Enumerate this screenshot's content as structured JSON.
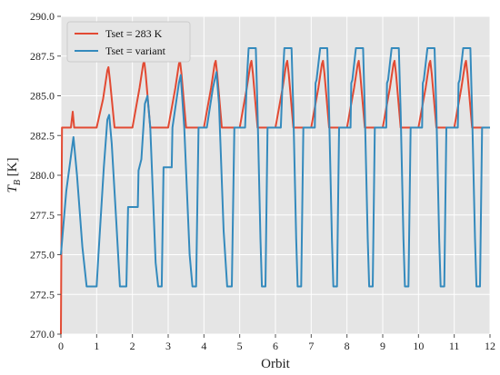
{
  "chart_data": {
    "type": "line",
    "xlabel": "Orbit",
    "ylabel_main": "T",
    "ylabel_sub": "B",
    "ylabel_unit": " [K]",
    "xlim": [
      0,
      12
    ],
    "ylim": [
      270,
      290
    ],
    "xticks": [
      "0",
      "1",
      "2",
      "3",
      "4",
      "5",
      "6",
      "7",
      "8",
      "9",
      "10",
      "11",
      "12"
    ],
    "yticks": [
      "270.0",
      "272.5",
      "275.0",
      "277.5",
      "280.0",
      "282.5",
      "285.0",
      "287.5",
      "290.0"
    ],
    "grid": true,
    "legend_position": "top-left",
    "series": [
      {
        "name": "Tset = 283 K",
        "color": "#e24a33",
        "points": [
          [
            0.0,
            270.0
          ],
          [
            0.03,
            283.0
          ],
          [
            0.28,
            283.0
          ],
          [
            0.33,
            284.0
          ],
          [
            0.37,
            283.0
          ],
          [
            1.0,
            283.0
          ],
          [
            1.18,
            284.8
          ],
          [
            1.3,
            286.6
          ],
          [
            1.33,
            286.8
          ],
          [
            1.37,
            286.0
          ],
          [
            1.5,
            283.0
          ],
          [
            2.0,
            283.0
          ],
          [
            2.2,
            285.5
          ],
          [
            2.3,
            287.0
          ],
          [
            2.33,
            287.2
          ],
          [
            2.37,
            286.4
          ],
          [
            2.5,
            283.0
          ],
          [
            3.0,
            283.0
          ],
          [
            3.2,
            285.5
          ],
          [
            3.3,
            287.0
          ],
          [
            3.33,
            287.2
          ],
          [
            3.37,
            286.4
          ],
          [
            3.5,
            283.0
          ],
          [
            4.0,
            283.0
          ],
          [
            4.2,
            285.5
          ],
          [
            4.3,
            287.0
          ],
          [
            4.33,
            287.2
          ],
          [
            4.37,
            286.4
          ],
          [
            4.5,
            283.0
          ],
          [
            5.0,
            283.0
          ],
          [
            5.2,
            285.5
          ],
          [
            5.3,
            287.0
          ],
          [
            5.33,
            287.2
          ],
          [
            5.37,
            286.4
          ],
          [
            5.5,
            283.0
          ],
          [
            6.0,
            283.0
          ],
          [
            6.2,
            285.5
          ],
          [
            6.3,
            287.0
          ],
          [
            6.33,
            287.2
          ],
          [
            6.37,
            286.4
          ],
          [
            6.5,
            283.0
          ],
          [
            7.0,
            283.0
          ],
          [
            7.2,
            285.5
          ],
          [
            7.3,
            287.0
          ],
          [
            7.33,
            287.2
          ],
          [
            7.37,
            286.4
          ],
          [
            7.5,
            283.0
          ],
          [
            8.0,
            283.0
          ],
          [
            8.2,
            285.5
          ],
          [
            8.3,
            287.0
          ],
          [
            8.33,
            287.2
          ],
          [
            8.37,
            286.4
          ],
          [
            8.5,
            283.0
          ],
          [
            9.0,
            283.0
          ],
          [
            9.2,
            285.5
          ],
          [
            9.3,
            287.0
          ],
          [
            9.33,
            287.2
          ],
          [
            9.37,
            286.4
          ],
          [
            9.5,
            283.0
          ],
          [
            10.0,
            283.0
          ],
          [
            10.2,
            285.5
          ],
          [
            10.3,
            287.0
          ],
          [
            10.33,
            287.2
          ],
          [
            10.37,
            286.4
          ],
          [
            10.5,
            283.0
          ],
          [
            11.0,
            283.0
          ],
          [
            11.2,
            285.5
          ],
          [
            11.3,
            287.0
          ],
          [
            11.33,
            287.2
          ],
          [
            11.37,
            286.4
          ],
          [
            11.5,
            283.0
          ],
          [
            12.0,
            283.0
          ]
        ]
      },
      {
        "name": "Tset = variant",
        "color": "#348abd",
        "points": [
          [
            0.0,
            275.0
          ],
          [
            0.15,
            279.0
          ],
          [
            0.35,
            282.4
          ],
          [
            0.45,
            280.0
          ],
          [
            0.6,
            275.5
          ],
          [
            0.72,
            273.0
          ],
          [
            1.0,
            273.0
          ],
          [
            1.05,
            275.0
          ],
          [
            1.2,
            280.5
          ],
          [
            1.3,
            283.5
          ],
          [
            1.35,
            283.8
          ],
          [
            1.42,
            282.0
          ],
          [
            1.55,
            277.0
          ],
          [
            1.65,
            273.0
          ],
          [
            1.83,
            273.0
          ],
          [
            1.88,
            278.0
          ],
          [
            2.15,
            278.0
          ],
          [
            2.17,
            280.3
          ],
          [
            2.25,
            281.0
          ],
          [
            2.35,
            284.5
          ],
          [
            2.42,
            285.0
          ],
          [
            2.5,
            283.0
          ],
          [
            2.65,
            274.5
          ],
          [
            2.72,
            273.0
          ],
          [
            2.82,
            273.0
          ],
          [
            2.87,
            280.5
          ],
          [
            3.1,
            280.5
          ],
          [
            3.12,
            283.0
          ],
          [
            3.3,
            285.8
          ],
          [
            3.35,
            286.3
          ],
          [
            3.45,
            283.0
          ],
          [
            3.6,
            275.0
          ],
          [
            3.68,
            273.0
          ],
          [
            3.78,
            273.0
          ],
          [
            3.85,
            283.0
          ],
          [
            4.08,
            283.0
          ],
          [
            4.25,
            285.5
          ],
          [
            4.35,
            286.5
          ],
          [
            4.42,
            284.5
          ],
          [
            4.55,
            276.5
          ],
          [
            4.65,
            273.0
          ],
          [
            4.78,
            273.0
          ],
          [
            4.85,
            283.0
          ],
          [
            5.15,
            283.0
          ],
          [
            5.2,
            286.0
          ],
          [
            5.25,
            288.0
          ],
          [
            5.45,
            288.0
          ],
          [
            5.5,
            284.0
          ],
          [
            5.58,
            276.0
          ],
          [
            5.62,
            273.0
          ],
          [
            5.72,
            273.0
          ],
          [
            5.78,
            283.0
          ],
          [
            6.15,
            283.0
          ],
          [
            6.2,
            286.0
          ],
          [
            6.25,
            288.0
          ],
          [
            6.45,
            288.0
          ],
          [
            6.5,
            284.0
          ],
          [
            6.58,
            276.0
          ],
          [
            6.62,
            273.0
          ],
          [
            6.72,
            273.0
          ],
          [
            6.78,
            283.0
          ],
          [
            7.1,
            283.0
          ],
          [
            7.12,
            285.8
          ],
          [
            7.15,
            286.0
          ],
          [
            7.25,
            288.0
          ],
          [
            7.45,
            288.0
          ],
          [
            7.5,
            284.0
          ],
          [
            7.58,
            276.0
          ],
          [
            7.62,
            273.0
          ],
          [
            7.72,
            273.0
          ],
          [
            7.78,
            283.0
          ],
          [
            8.1,
            283.0
          ],
          [
            8.12,
            285.8
          ],
          [
            8.15,
            286.0
          ],
          [
            8.25,
            288.0
          ],
          [
            8.45,
            288.0
          ],
          [
            8.5,
            284.0
          ],
          [
            8.58,
            276.0
          ],
          [
            8.62,
            273.0
          ],
          [
            8.72,
            273.0
          ],
          [
            8.78,
            283.0
          ],
          [
            9.1,
            283.0
          ],
          [
            9.12,
            285.8
          ],
          [
            9.15,
            286.0
          ],
          [
            9.25,
            288.0
          ],
          [
            9.45,
            288.0
          ],
          [
            9.5,
            284.0
          ],
          [
            9.58,
            276.0
          ],
          [
            9.62,
            273.0
          ],
          [
            9.72,
            273.0
          ],
          [
            9.78,
            283.0
          ],
          [
            10.1,
            283.0
          ],
          [
            10.12,
            285.8
          ],
          [
            10.15,
            286.0
          ],
          [
            10.25,
            288.0
          ],
          [
            10.45,
            288.0
          ],
          [
            10.5,
            284.0
          ],
          [
            10.58,
            276.0
          ],
          [
            10.62,
            273.0
          ],
          [
            10.72,
            273.0
          ],
          [
            10.78,
            283.0
          ],
          [
            11.1,
            283.0
          ],
          [
            11.12,
            285.8
          ],
          [
            11.15,
            286.0
          ],
          [
            11.25,
            288.0
          ],
          [
            11.45,
            288.0
          ],
          [
            11.5,
            284.0
          ],
          [
            11.58,
            276.0
          ],
          [
            11.62,
            273.0
          ],
          [
            11.72,
            273.0
          ],
          [
            11.78,
            283.0
          ],
          [
            12.0,
            283.0
          ]
        ]
      }
    ]
  }
}
